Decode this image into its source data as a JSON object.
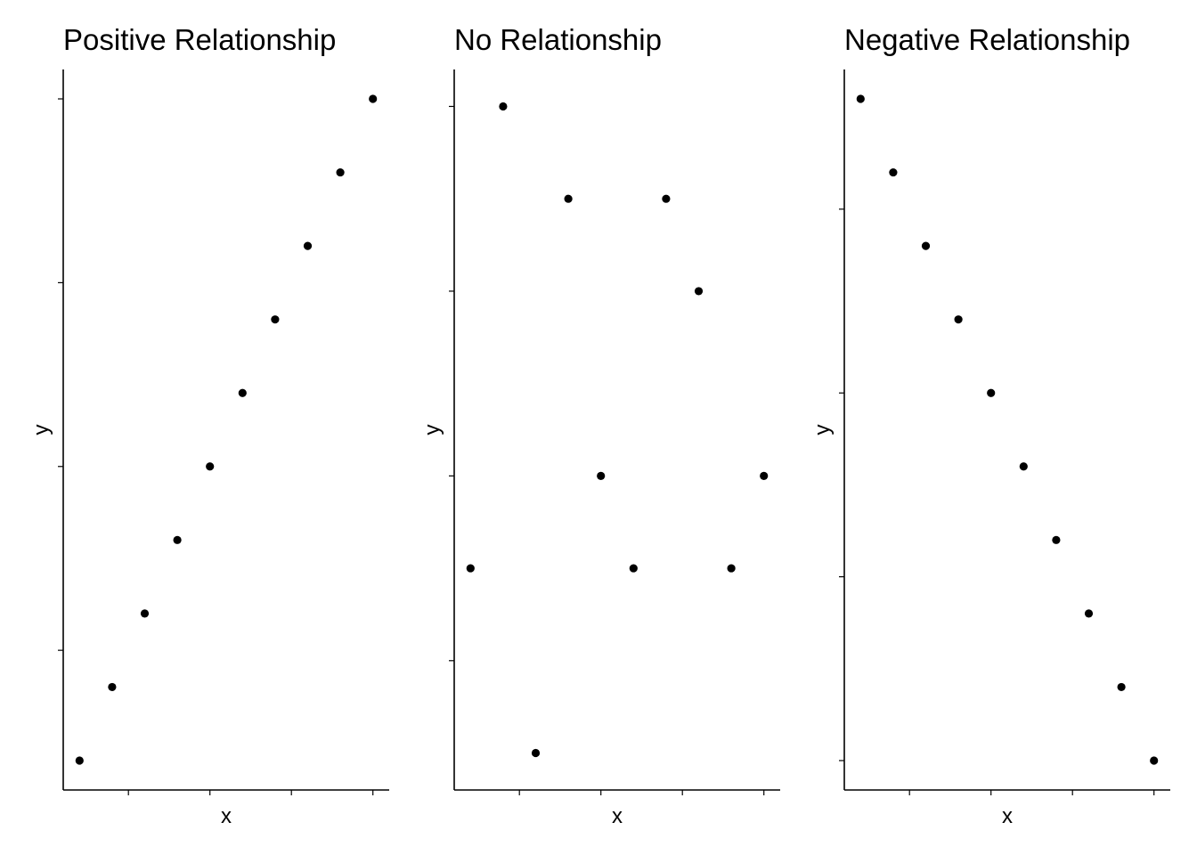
{
  "chart_data": [
    {
      "type": "scatter",
      "title": "Positive Relationship",
      "xlabel": "x",
      "ylabel": "y",
      "xlim": [
        0.5,
        10.5
      ],
      "ylim": [
        0.6,
        10.4
      ],
      "x_ticks": [
        2.5,
        5,
        7.5,
        10
      ],
      "y_ticks": [
        2.5,
        5,
        7.5,
        10
      ],
      "x": [
        1,
        2,
        3,
        4,
        5,
        6,
        7,
        8,
        9,
        10
      ],
      "y": [
        1,
        2,
        3,
        4,
        5,
        6,
        7,
        8,
        9,
        10
      ],
      "grid": false,
      "legend": "none"
    },
    {
      "type": "scatter",
      "title": "No Relationship",
      "xlabel": "x",
      "ylabel": "y",
      "xlim": [
        0.5,
        10.5
      ],
      "ylim": [
        0.6,
        8.4
      ],
      "x_ticks": [
        2.5,
        5,
        7.5,
        10
      ],
      "y_ticks": [
        2,
        4,
        6,
        8
      ],
      "x": [
        1,
        2,
        3,
        4,
        5,
        6,
        7,
        8,
        9,
        10
      ],
      "y": [
        3,
        8,
        1,
        7,
        4,
        3,
        7,
        6,
        3,
        4
      ],
      "grid": false,
      "legend": "none"
    },
    {
      "type": "scatter",
      "title": "Negative Relationship",
      "xlabel": "x",
      "ylabel": "y",
      "xlim": [
        0.5,
        10.5
      ],
      "ylim": [
        0.6,
        10.4
      ],
      "x_ticks": [
        2.5,
        5,
        7.5,
        10
      ],
      "y_ticks": [
        1,
        3.5,
        6,
        8.5
      ],
      "x": [
        1,
        2,
        3,
        4,
        5,
        6,
        7,
        8,
        9,
        10
      ],
      "y": [
        10,
        9,
        8,
        7,
        6,
        5,
        4,
        3,
        2,
        1
      ],
      "grid": false,
      "legend": "none"
    }
  ]
}
